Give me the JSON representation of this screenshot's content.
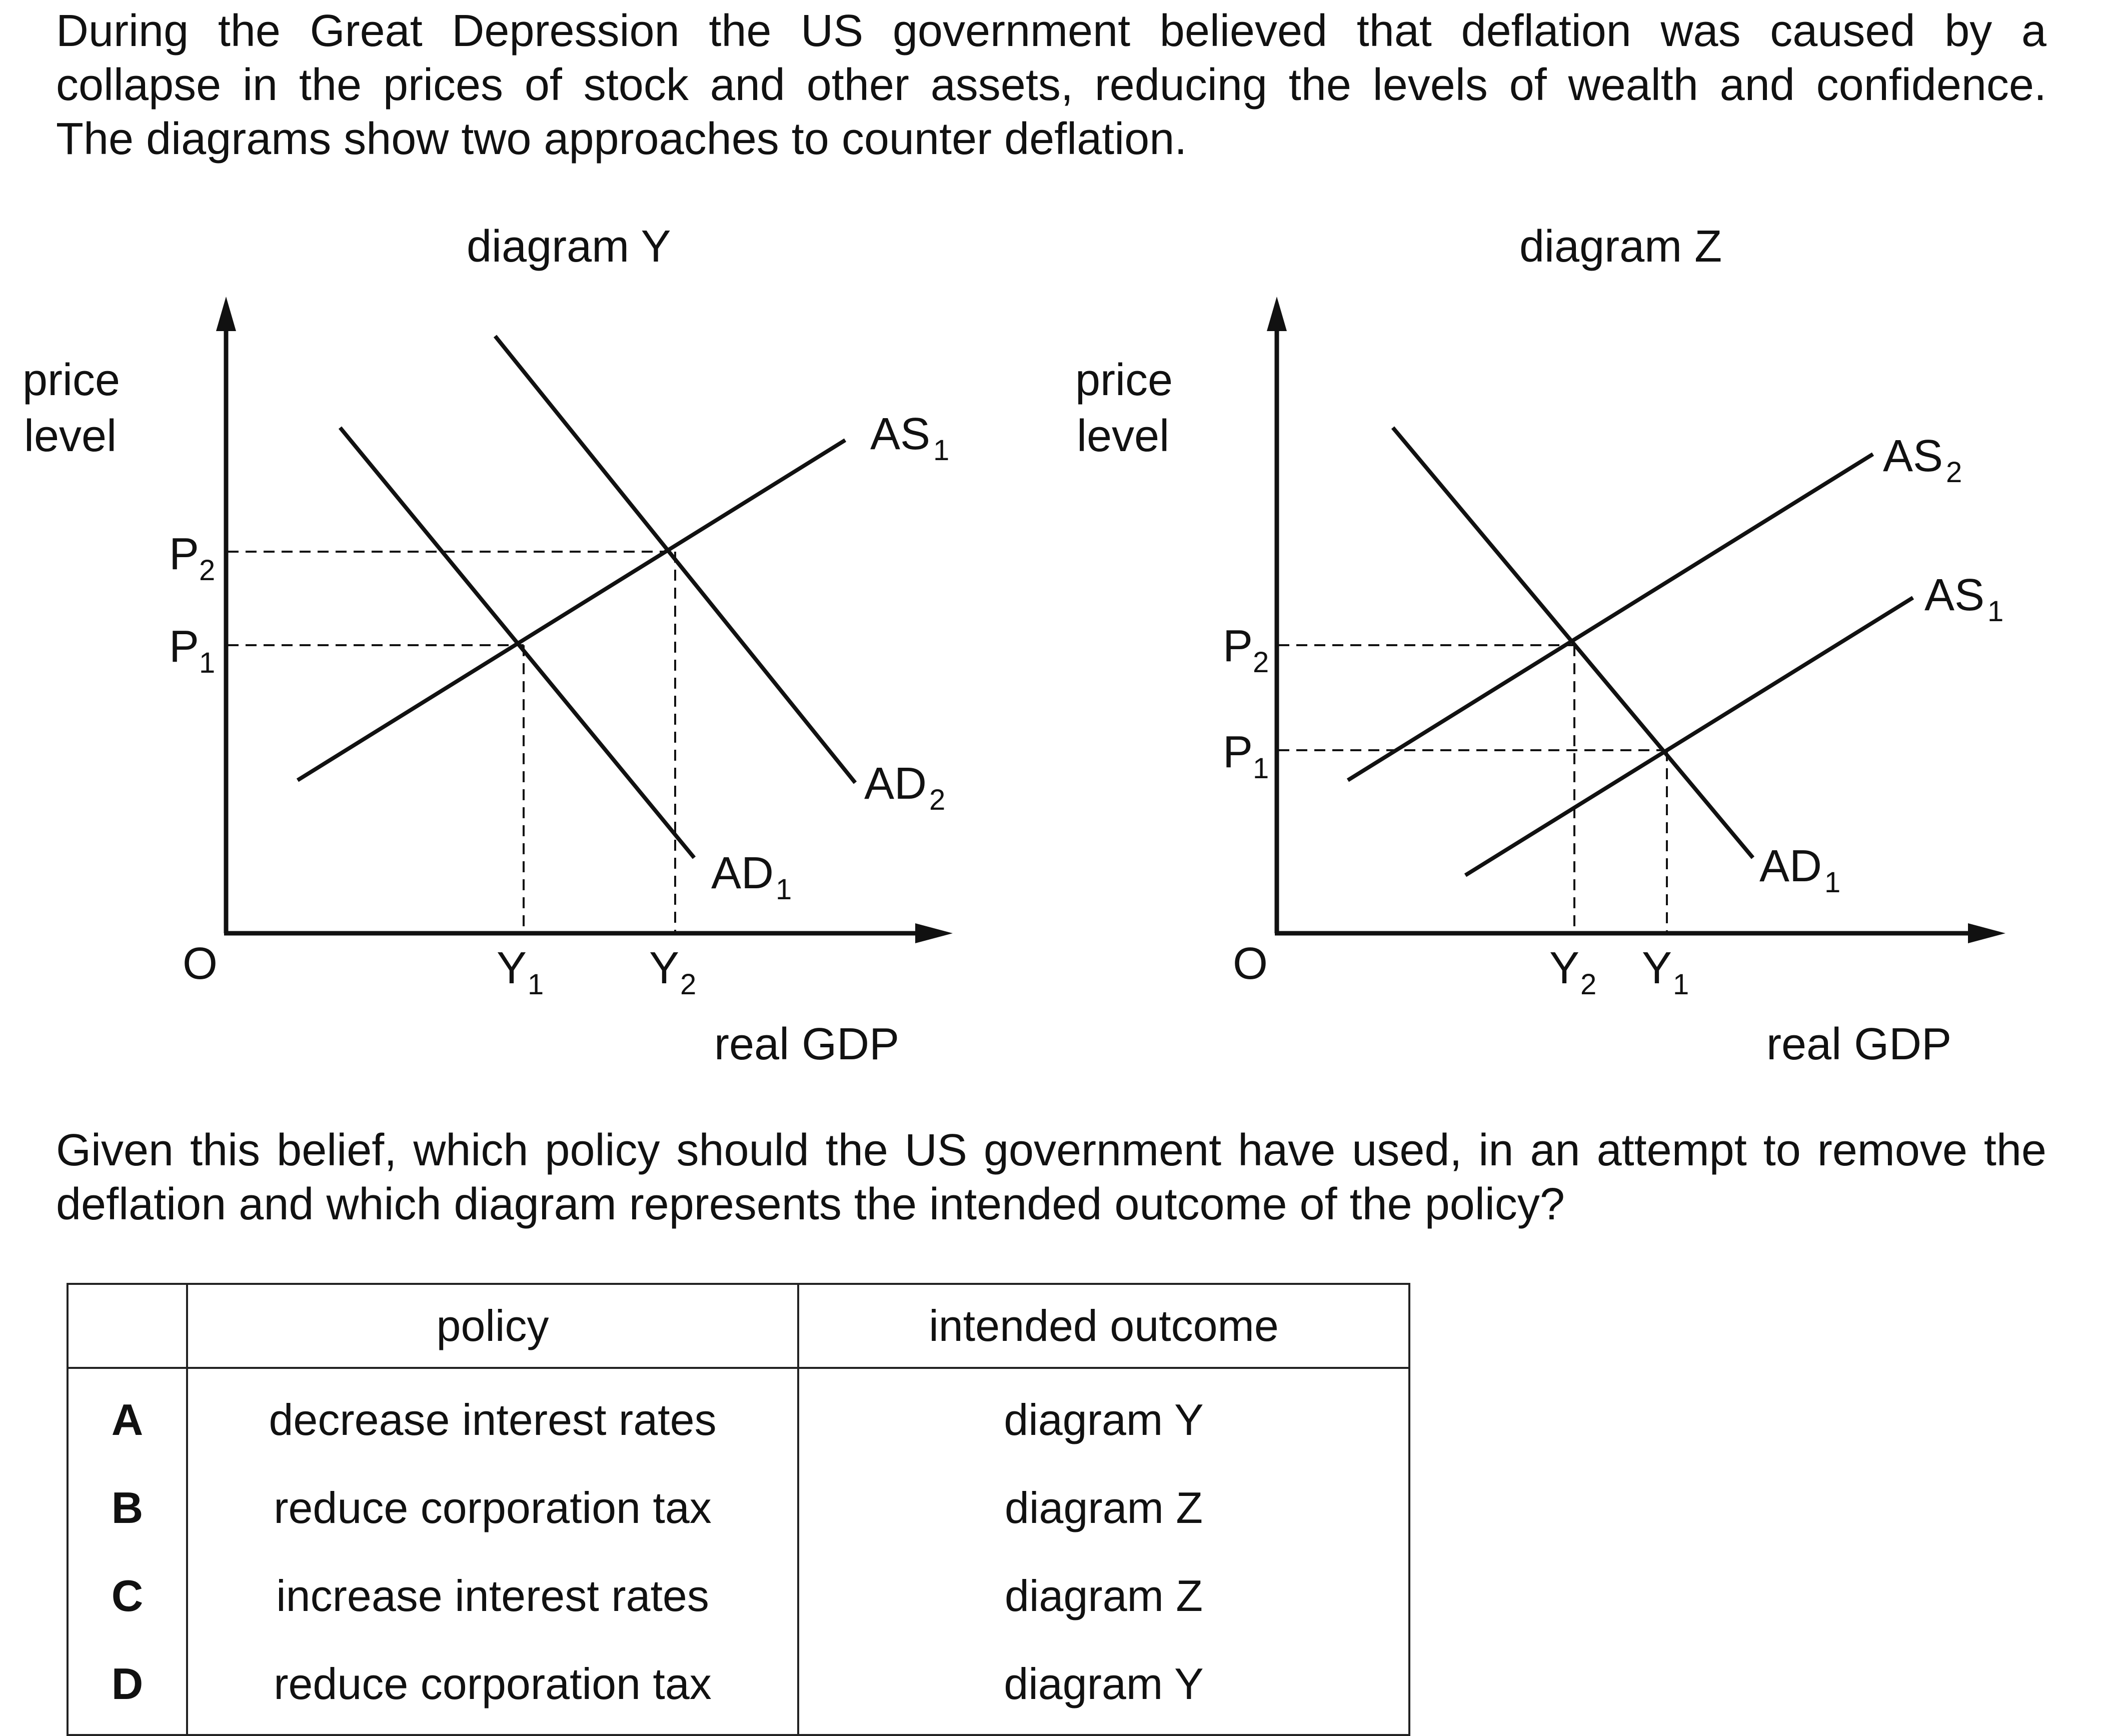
{
  "intro": {
    "line1": "During the Great Depression the US government believed that deflation was caused by a",
    "line2": "collapse in the prices of stock and other assets, reducing the levels of wealth and confidence.",
    "line3": "The diagrams show two approaches to counter deflation."
  },
  "diagram_y": {
    "title": "diagram Y",
    "y_axis_label_1": "price",
    "y_axis_label_2": "level",
    "x_axis_label": "real GDP",
    "origin": "O",
    "p2": "P",
    "p2_sub": "2",
    "p1": "P",
    "p1_sub": "1",
    "y1": "Y",
    "y1_sub": "1",
    "y2": "Y",
    "y2_sub": "2",
    "as1": "AS",
    "as1_sub": "1",
    "ad1": "AD",
    "ad1_sub": "1",
    "ad2": "AD",
    "ad2_sub": "2"
  },
  "diagram_z": {
    "title": "diagram Z",
    "y_axis_label_1": "price",
    "y_axis_label_2": "level",
    "x_axis_label": "real GDP",
    "origin": "O",
    "p2": "P",
    "p2_sub": "2",
    "p1": "P",
    "p1_sub": "1",
    "y2": "Y",
    "y2_sub": "2",
    "y1": "Y",
    "y1_sub": "1",
    "as1": "AS",
    "as1_sub": "1",
    "as2": "AS",
    "as2_sub": "2",
    "ad1": "AD",
    "ad1_sub": "1"
  },
  "question": {
    "line1": "Given this belief, which policy should the US government have used, in an attempt to remove the",
    "line2": "deflation and which diagram represents the intended outcome of the policy?"
  },
  "options_table": {
    "header_policy": "policy",
    "header_outcome": "intended outcome",
    "rows": [
      {
        "key": "A",
        "policy": "decrease interest rates",
        "outcome": "diagram Y"
      },
      {
        "key": "B",
        "policy": "reduce corporation tax",
        "outcome": "diagram Z"
      },
      {
        "key": "C",
        "policy": "increase interest rates",
        "outcome": "diagram Z"
      },
      {
        "key": "D",
        "policy": "reduce corporation tax",
        "outcome": "diagram Y"
      }
    ]
  }
}
